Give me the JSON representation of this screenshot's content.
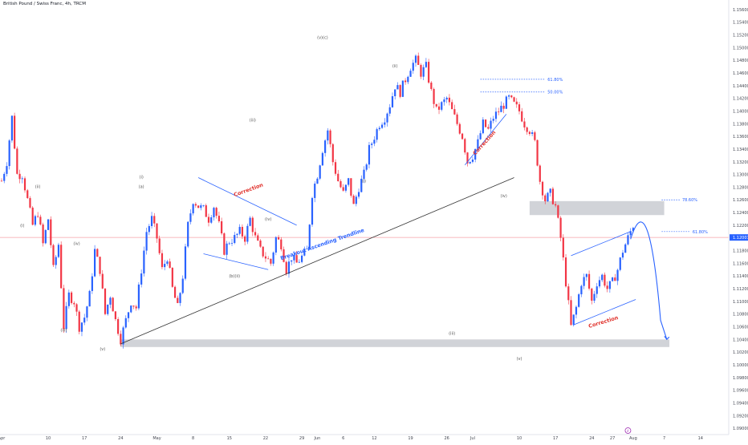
{
  "header": {
    "symbol_title": "British Pound / Swiss Franc, 4h, TRCM"
  },
  "colors": {
    "up": "#2962ff",
    "down": "#f23645",
    "trendline": "#333333",
    "channel": "#2962ff",
    "fib": "#2962ff",
    "zone": "#b2b5be",
    "price_line": "#f7a1a7",
    "price_badge": "#2962ff",
    "projection": "#2962ff",
    "axis_text": "#434651",
    "wave_text": "#555555",
    "correction_text": "#e0312b"
  },
  "chart_data": {
    "type": "candlestick",
    "title": "British Pound / Swiss Franc, 4h, TRCM",
    "ylim": [
      1.089,
      1.1575
    ],
    "y_ticks": [
      "1.15600",
      "1.15400",
      "1.15200",
      "1.15000",
      "1.14800",
      "1.14600",
      "1.14400",
      "1.14200",
      "1.14000",
      "1.13800",
      "1.13600",
      "1.13400",
      "1.13200",
      "1.13000",
      "1.12800",
      "1.12600",
      "1.12400",
      "1.12200",
      "1.12000",
      "1.11800",
      "1.11600",
      "1.11400",
      "1.11200",
      "1.11000",
      "1.10800",
      "1.10600",
      "1.10400",
      "1.10200",
      "1.10000",
      "1.09800",
      "1.09600",
      "1.09400",
      "1.09200",
      "1.09000"
    ],
    "x_ticks": [
      {
        "label": "Apr",
        "day": 0
      },
      {
        "label": "10",
        "day": 9
      },
      {
        "label": "17",
        "day": 16
      },
      {
        "label": "24",
        "day": 23
      },
      {
        "label": "May",
        "day": 30
      },
      {
        "label": "8",
        "day": 37
      },
      {
        "label": "15",
        "day": 44
      },
      {
        "label": "22",
        "day": 51
      },
      {
        "label": "29",
        "day": 58
      },
      {
        "label": "Jun",
        "day": 61
      },
      {
        "label": "6",
        "day": 66
      },
      {
        "label": "12",
        "day": 72
      },
      {
        "label": "19",
        "day": 79
      },
      {
        "label": "26",
        "day": 86
      },
      {
        "label": "Jul",
        "day": 91
      },
      {
        "label": "10",
        "day": 100
      },
      {
        "label": "17",
        "day": 107
      },
      {
        "label": "24",
        "day": 114
      },
      {
        "label": "27",
        "day": 118
      },
      {
        "label": "Aug",
        "day": 122
      },
      {
        "label": "7",
        "day": 128
      },
      {
        "label": "14",
        "day": 135
      }
    ],
    "current_price": "1.12007",
    "price_path": [
      [
        0,
        1.129
      ],
      [
        1,
        1.132
      ],
      [
        2,
        1.139
      ],
      [
        3,
        1.13
      ],
      [
        4,
        1.13
      ],
      [
        5,
        1.126
      ],
      [
        6,
        1.122
      ],
      [
        7,
        1.124
      ],
      [
        8,
        1.119
      ],
      [
        9,
        1.123
      ],
      [
        10,
        1.115
      ],
      [
        11,
        1.119
      ],
      [
        12,
        1.106
      ],
      [
        13,
        1.111
      ],
      [
        14,
        1.11
      ],
      [
        15,
        1.106
      ],
      [
        16,
        1.1075
      ],
      [
        17,
        1.111
      ],
      [
        18,
        1.118
      ],
      [
        19,
        1.115
      ],
      [
        20,
        1.108
      ],
      [
        21,
        1.111
      ],
      [
        22,
        1.107
      ],
      [
        23,
        1.104
      ],
      [
        24,
        1.107
      ],
      [
        25,
        1.11
      ],
      [
        26,
        1.109
      ],
      [
        27,
        1.115
      ],
      [
        28,
        1.121
      ],
      [
        29,
        1.123
      ],
      [
        30,
        1.12
      ],
      [
        31,
        1.115
      ],
      [
        32,
        1.117
      ],
      [
        33,
        1.112
      ],
      [
        34,
        1.109
      ],
      [
        35,
        1.114
      ],
      [
        36,
        1.122
      ],
      [
        37,
        1.126
      ],
      [
        38,
        1.125
      ],
      [
        39,
        1.1245
      ],
      [
        40,
        1.123
      ],
      [
        41,
        1.125
      ],
      [
        42,
        1.122
      ],
      [
        43,
        1.118
      ],
      [
        44,
        1.1195
      ],
      [
        45,
        1.12
      ],
      [
        46,
        1.121
      ],
      [
        47,
        1.12
      ],
      [
        48,
        1.123
      ],
      [
        49,
        1.12
      ],
      [
        50,
        1.118
      ],
      [
        51,
        1.117
      ],
      [
        52,
        1.116
      ],
      [
        53,
        1.12
      ],
      [
        54,
        1.119
      ],
      [
        55,
        1.115
      ],
      [
        56,
        1.117
      ],
      [
        57,
        1.116
      ],
      [
        58,
        1.117
      ],
      [
        59,
        1.118
      ],
      [
        60,
        1.127
      ],
      [
        61,
        1.13
      ],
      [
        62,
        1.134
      ],
      [
        63,
        1.137
      ],
      [
        64,
        1.132
      ],
      [
        65,
        1.129
      ],
      [
        66,
        1.127
      ],
      [
        67,
        1.129
      ],
      [
        68,
        1.125
      ],
      [
        69,
        1.128
      ],
      [
        70,
        1.13
      ],
      [
        71,
        1.134
      ],
      [
        72,
        1.136
      ],
      [
        73,
        1.138
      ],
      [
        74,
        1.139
      ],
      [
        75,
        1.141
      ],
      [
        76,
        1.144
      ],
      [
        77,
        1.143
      ],
      [
        78,
        1.145
      ],
      [
        79,
        1.147
      ],
      [
        80,
        1.148
      ],
      [
        81,
        1.146
      ],
      [
        82,
        1.147
      ],
      [
        83,
        1.143
      ],
      [
        84,
        1.14
      ],
      [
        85,
        1.141
      ],
      [
        86,
        1.142
      ],
      [
        87,
        1.14
      ],
      [
        88,
        1.138
      ],
      [
        89,
        1.136
      ],
      [
        90,
        1.132
      ],
      [
        91,
        1.133
      ],
      [
        92,
        1.135
      ],
      [
        93,
        1.138
      ],
      [
        94,
        1.137
      ],
      [
        95,
        1.139
      ],
      [
        96,
        1.14
      ],
      [
        97,
        1.141
      ],
      [
        98,
        1.142
      ],
      [
        99,
        1.141
      ],
      [
        100,
        1.14
      ],
      [
        101,
        1.138
      ],
      [
        102,
        1.137
      ],
      [
        103,
        1.135
      ],
      [
        104,
        1.129
      ],
      [
        105,
        1.126
      ],
      [
        106,
        1.127
      ],
      [
        107,
        1.125
      ],
      [
        108,
        1.12
      ],
      [
        109,
        1.113
      ],
      [
        110,
        1.106
      ],
      [
        111,
        1.109
      ],
      [
        112,
        1.113
      ],
      [
        113,
        1.114
      ],
      [
        114,
        1.11
      ],
      [
        115,
        1.113
      ],
      [
        116,
        1.114
      ],
      [
        117,
        1.112
      ],
      [
        118,
        1.113
      ],
      [
        119,
        1.115
      ],
      [
        120,
        1.118
      ],
      [
        121,
        1.12
      ],
      [
        122,
        1.122
      ]
    ],
    "annotations": {
      "wave_labels": [
        {
          "text": "(i)",
          "day": 4,
          "price": 1.1225,
          "pos": "below"
        },
        {
          "text": "(ii)",
          "day": 7,
          "price": 1.1275,
          "pos": "above"
        },
        {
          "text": "(iii)",
          "day": 12,
          "price": 1.106,
          "pos": "below"
        },
        {
          "text": "(iv)",
          "day": 14.5,
          "price": 1.1185,
          "pos": "above"
        },
        {
          "text": "(v)",
          "day": 19.5,
          "price": 1.103,
          "pos": "below"
        },
        {
          "text": "(i)",
          "day": 27,
          "price": 1.129,
          "pos": "above"
        },
        {
          "text": "(a)",
          "day": 27,
          "price": 1.1275,
          "pos": "above"
        },
        {
          "text": "(b)(ii)",
          "day": 45,
          "price": 1.1145,
          "pos": "below"
        },
        {
          "text": "(iii)",
          "day": 48.5,
          "price": 1.138,
          "pos": "above"
        },
        {
          "text": "(iv)",
          "day": 51.5,
          "price": 1.1235,
          "pos": "below"
        },
        {
          "text": "(v)(c)",
          "day": 62,
          "price": 1.151,
          "pos": "above"
        },
        {
          "text": "(i)",
          "day": 70,
          "price": 1.1295,
          "pos": "below"
        },
        {
          "text": "(ii)",
          "day": 76,
          "price": 1.1465,
          "pos": "above"
        },
        {
          "text": "(iii)",
          "day": 87,
          "price": 1.1055,
          "pos": "below"
        },
        {
          "text": "(iv)",
          "day": 97,
          "price": 1.126,
          "pos": "above"
        },
        {
          "text": "(v)",
          "day": 100,
          "price": 1.1015,
          "pos": "below"
        }
      ],
      "correction_labels": [
        "Correction",
        "Correction",
        "Correction"
      ],
      "trendline_label": "Breakout Ascending Trendline",
      "fib_levels": [
        {
          "label": "61.80%",
          "price": 1.145
        },
        {
          "label": "50.00%",
          "price": 1.143
        },
        {
          "label": "78.60%",
          "price": 1.126
        },
        {
          "label": "61.80%",
          "price": 1.121
        }
      ],
      "target_circle_label": "ℓ"
    }
  }
}
